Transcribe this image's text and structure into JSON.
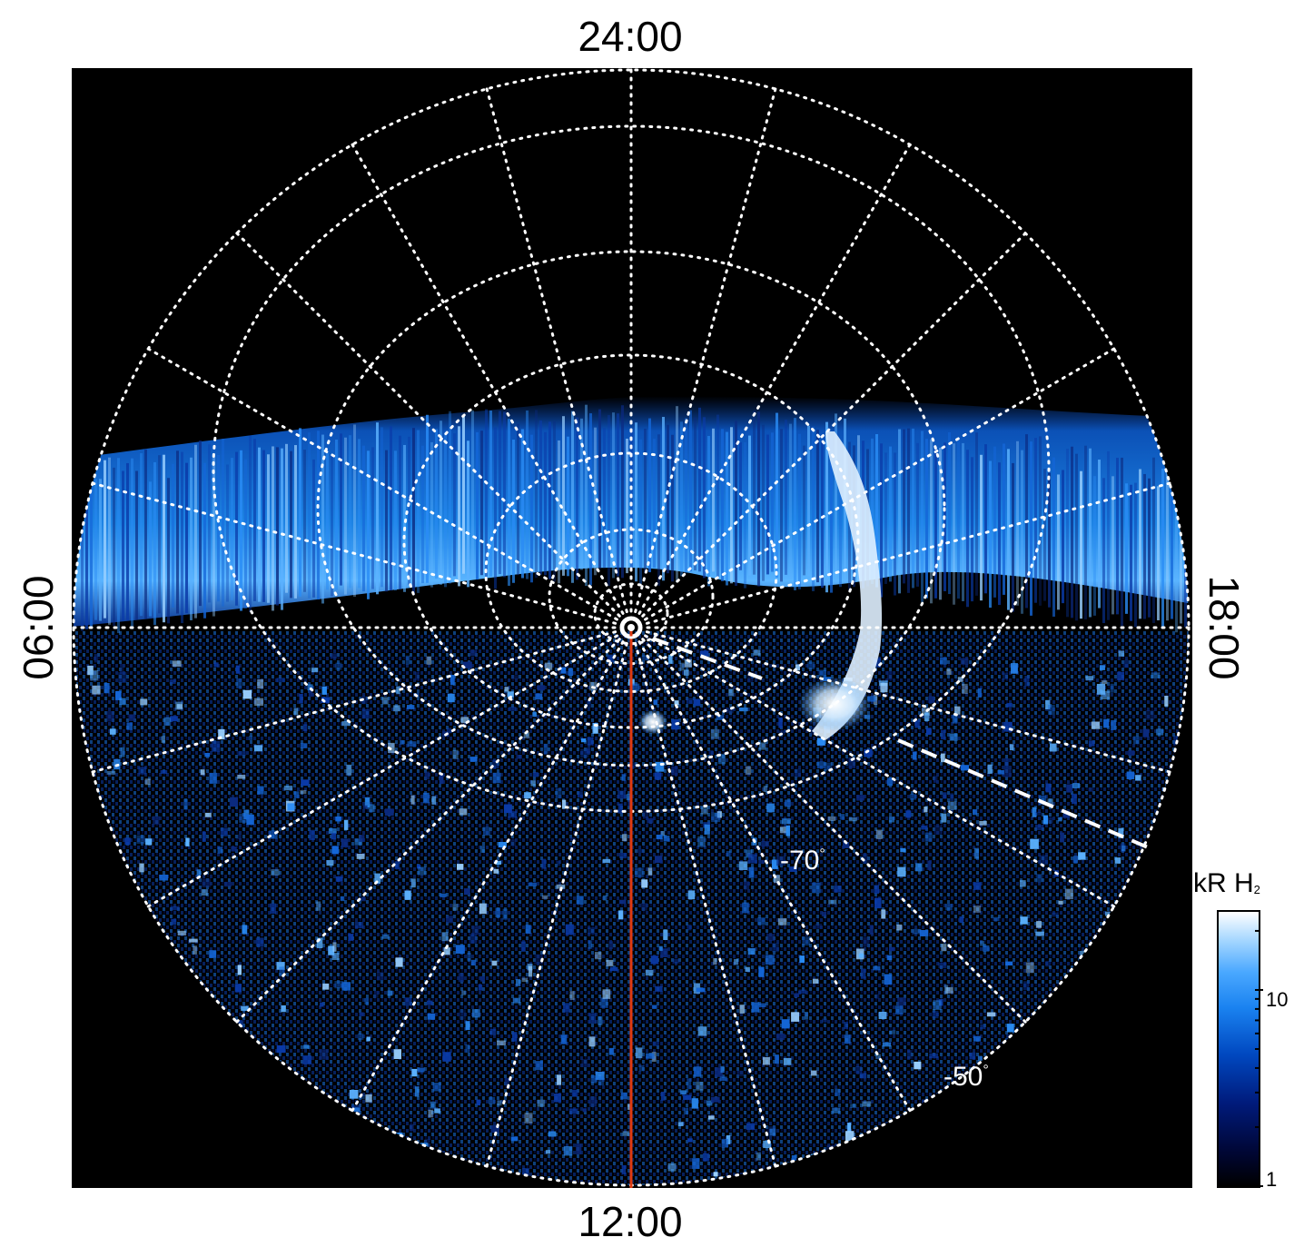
{
  "local_time_labels": {
    "top": "24:00",
    "bottom": "12:00",
    "left": "06:00",
    "right": "18:00"
  },
  "latitude_labels": {
    "inner": "-70",
    "outer": "-50",
    "degree_symbol": "°"
  },
  "colorbar": {
    "title_main": "kR H",
    "title_sub": "2",
    "tick_10": "10",
    "tick_1": "1",
    "scale": "log",
    "range": [
      1,
      25
    ]
  },
  "colors": {
    "background": "#000000",
    "grid": "#ffffff",
    "noon_meridian": "#e03a10",
    "aurora_low": "#001a7a",
    "aurora_mid": "#1a82f0",
    "aurora_high": "#ffffff"
  }
}
